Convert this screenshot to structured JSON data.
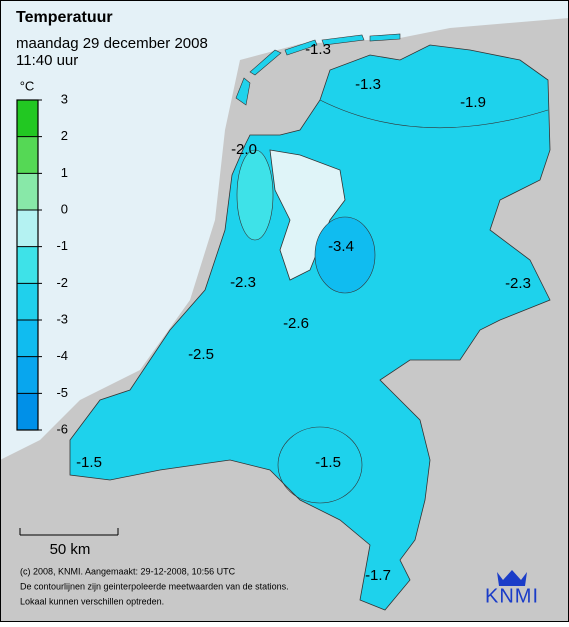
{
  "header": {
    "title": "Temperatuur",
    "date": "maandag 29 december 2008",
    "time": "11:40 uur"
  },
  "legend": {
    "unit": "°C",
    "ticks": [
      3,
      2,
      1,
      0,
      -1,
      -2,
      -3,
      -4,
      -5,
      -6
    ],
    "colors": [
      "#22c822",
      "#55d855",
      "#88e8a8",
      "#b4f2f2",
      "#3ee2e8",
      "#20d0ec",
      "#10bcf0",
      "#08a6ee",
      "#0090e8"
    ]
  },
  "map": {
    "land_color": "#1ed2ec",
    "labels": [
      -1.3,
      -1.3,
      -1.9,
      {
        "value": -2.0,
        "label": "-2.0"
      },
      -3.4,
      -2.3,
      -2.3,
      -2.6,
      -2.5,
      -1.5,
      -1.5,
      -1.7
    ]
  },
  "scale": "50 km",
  "footer": {
    "lines": [
      "(c) 2008, KNMI. Aangemaakt: 29-12-2008, 10:56 UTC",
      "De contourlijnen zijn geinterpoleerde meetwaarden van de stations.",
      "Lokaal kunnen verschillen optreden."
    ]
  },
  "logo": "KNMI"
}
